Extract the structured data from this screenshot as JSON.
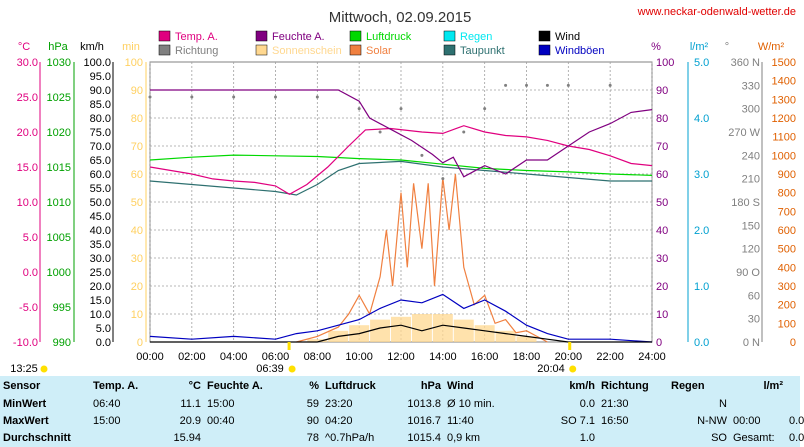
{
  "header": {
    "title": "Mittwoch, 02.09.2015",
    "site": "www.neckar-odenwald-wetter.de"
  },
  "colors": {
    "temp": "#e0007f",
    "humidity": "#800080",
    "pressure": "#00d800",
    "rain": "#00e8f0",
    "wind": "#000000",
    "direction": "#808080",
    "sunshine": "#ffd890",
    "solar": "#f08040",
    "dewpoint": "#2e7070",
    "gust": "#0000c0",
    "grid": "#a0a0a0",
    "temp_axis": "#e0007f",
    "pressure_axis": "#00a000",
    "windaxis": "#000000",
    "min_axis": "#ffd060",
    "pct_axis": "#800080",
    "rain_axis": "#00a0d0",
    "dir_axis": "#808080",
    "solar_axis": "#e06000"
  },
  "legend": [
    {
      "key": "temp",
      "label": "Temp. A."
    },
    {
      "key": "humidity",
      "label": "Feuchte A."
    },
    {
      "key": "pressure",
      "label": "Luftdruck"
    },
    {
      "key": "rain",
      "label": "Regen"
    },
    {
      "key": "wind",
      "label": "Wind"
    },
    {
      "key": "direction",
      "label": "Richtung"
    },
    {
      "key": "sunshine",
      "label": "Sonnenschein"
    },
    {
      "key": "solar",
      "label": "Solar"
    },
    {
      "key": "dewpoint",
      "label": "Taupunkt"
    },
    {
      "key": "gust",
      "label": "Windböen"
    }
  ],
  "sun": {
    "sunrise": "06:39",
    "sunset": "20:04",
    "left_time": "13:25"
  },
  "chart_data": {
    "type": "line",
    "x_range": [
      "00:00",
      "24:00"
    ],
    "x_ticks": [
      "00:00",
      "02:00",
      "04:00",
      "06:00",
      "08:00",
      "10:00",
      "12:00",
      "14:00",
      "16:00",
      "18:00",
      "20:00",
      "22:00",
      "24:00"
    ],
    "axes": {
      "temp": {
        "unit": "°C",
        "ticks": [
          "30.0",
          "25.0",
          "20.0",
          "15.0",
          "10.0",
          "5.0",
          "0.0",
          "-5.0",
          "-10.0"
        ],
        "range": [
          -10,
          30
        ]
      },
      "pressure": {
        "unit": "hPa",
        "ticks": [
          "1030",
          "1025",
          "1020",
          "1015",
          "1010",
          "1005",
          "1000",
          "995",
          "990"
        ],
        "range": [
          990,
          1030
        ]
      },
      "wind": {
        "unit": "km/h",
        "ticks": [
          "100.0",
          "95.0",
          "90.0",
          "85.0",
          "80.0",
          "75.0",
          "70.0",
          "65.0",
          "60.0",
          "55.0",
          "50.0",
          "45.0",
          "40.0",
          "35.0",
          "30.0",
          "25.0",
          "20.0",
          "15.0",
          "10.0",
          "5.0",
          "0.0"
        ],
        "range": [
          0,
          100
        ]
      },
      "minutes": {
        "unit": "min",
        "ticks": [
          "100",
          "90",
          "80",
          "70",
          "60",
          "50",
          "40",
          "30",
          "20",
          "10",
          "0"
        ],
        "range": [
          0,
          100
        ]
      },
      "percent": {
        "unit": "%",
        "ticks": [
          "100",
          "90",
          "80",
          "70",
          "60",
          "50",
          "40",
          "30",
          "20",
          "10",
          "0"
        ],
        "range": [
          0,
          100
        ]
      },
      "rain": {
        "unit": "l/m²",
        "ticks": [
          "5.0",
          "4.0",
          "3.0",
          "2.0",
          "1.0",
          "0.0"
        ],
        "range": [
          0,
          5
        ]
      },
      "direction": {
        "unit": "°",
        "ticks": [
          "360 N",
          "330",
          "300",
          "270 W",
          "240",
          "210",
          "180 S",
          "150",
          "120",
          "90 O",
          "60",
          "30",
          "0 N"
        ],
        "range": [
          0,
          360
        ]
      },
      "solar": {
        "unit": "W/m²",
        "ticks": [
          "1500",
          "1400",
          "1300",
          "1200",
          "1100",
          "1000",
          "900",
          "800",
          "700",
          "600",
          "500",
          "400",
          "300",
          "200",
          "100",
          "0"
        ],
        "range": [
          0,
          1500
        ]
      }
    },
    "series": [
      {
        "key": "temp",
        "name": "Temp. A.",
        "axis": "temp",
        "points": [
          [
            0,
            15.0
          ],
          [
            1,
            14.5
          ],
          [
            2,
            14.0
          ],
          [
            3,
            13.3
          ],
          [
            4,
            13.0
          ],
          [
            5,
            12.8
          ],
          [
            6,
            12.3
          ],
          [
            6.67,
            11.1
          ],
          [
            7.5,
            12.5
          ],
          [
            8.5,
            15.0
          ],
          [
            9.5,
            18.0
          ],
          [
            10.3,
            20.3
          ],
          [
            11.5,
            20.5
          ],
          [
            13,
            20.0
          ],
          [
            14,
            19.8
          ],
          [
            15,
            20.9
          ],
          [
            16,
            20.0
          ],
          [
            17,
            19.5
          ],
          [
            18,
            19.3
          ],
          [
            19,
            18.8
          ],
          [
            20,
            18.0
          ],
          [
            21,
            17.5
          ],
          [
            22,
            16.6
          ],
          [
            23,
            15.5
          ],
          [
            24,
            15.2
          ]
        ]
      },
      {
        "key": "humidity",
        "name": "Feuchte A.",
        "axis": "percent",
        "points": [
          [
            0,
            90
          ],
          [
            2,
            90
          ],
          [
            4,
            90
          ],
          [
            6,
            90
          ],
          [
            8,
            90
          ],
          [
            9,
            90
          ],
          [
            10,
            86
          ],
          [
            10.5,
            80
          ],
          [
            11.5,
            76
          ],
          [
            12.5,
            72
          ],
          [
            13.5,
            67
          ],
          [
            14,
            64
          ],
          [
            14.5,
            66
          ],
          [
            15,
            59
          ],
          [
            15.5,
            61
          ],
          [
            16,
            63
          ],
          [
            17,
            60
          ],
          [
            18,
            65
          ],
          [
            19,
            65
          ],
          [
            20,
            70
          ],
          [
            21,
            75
          ],
          [
            22,
            78
          ],
          [
            23,
            82
          ],
          [
            24,
            83
          ]
        ]
      },
      {
        "key": "pressure",
        "name": "Luftdruck",
        "axis": "pressure",
        "points": [
          [
            0,
            1016.0
          ],
          [
            2,
            1016.4
          ],
          [
            4,
            1016.7
          ],
          [
            6,
            1016.6
          ],
          [
            8,
            1016.5
          ],
          [
            10,
            1016.2
          ],
          [
            12,
            1016.0
          ],
          [
            14,
            1015.4
          ],
          [
            16,
            1014.8
          ],
          [
            18,
            1014.5
          ],
          [
            20,
            1014.3
          ],
          [
            22,
            1014.0
          ],
          [
            24,
            1013.8
          ]
        ]
      },
      {
        "key": "dewpoint",
        "name": "Taupunkt",
        "axis": "temp",
        "points": [
          [
            0,
            13.0
          ],
          [
            2,
            12.5
          ],
          [
            4,
            12.0
          ],
          [
            6,
            11.5
          ],
          [
            7,
            11.0
          ],
          [
            8,
            12.5
          ],
          [
            9,
            14.5
          ],
          [
            10,
            15.5
          ],
          [
            12,
            15.8
          ],
          [
            14,
            15.0
          ],
          [
            16,
            14.5
          ],
          [
            18,
            14.0
          ],
          [
            20,
            13.5
          ],
          [
            22,
            13.0
          ],
          [
            24,
            13.0
          ]
        ]
      },
      {
        "key": "direction",
        "name": "Richtung",
        "axis": "direction",
        "points": [
          [
            0,
            315
          ],
          [
            2,
            315
          ],
          [
            4,
            315
          ],
          [
            6,
            315
          ],
          [
            8,
            315
          ],
          [
            10,
            300
          ],
          [
            11,
            270
          ],
          [
            12,
            300
          ],
          [
            13,
            240
          ],
          [
            14,
            210
          ],
          [
            15,
            270
          ],
          [
            16,
            300
          ],
          [
            17,
            330
          ],
          [
            18,
            330
          ],
          [
            19,
            330
          ],
          [
            20,
            330
          ],
          [
            22,
            330
          ]
        ]
      },
      {
        "key": "solar",
        "name": "Solar",
        "axis": "solar",
        "points": [
          [
            7,
            0
          ],
          [
            8,
            30
          ],
          [
            9,
            80
          ],
          [
            9.5,
            150
          ],
          [
            10,
            250
          ],
          [
            10.5,
            150
          ],
          [
            11,
            350
          ],
          [
            11.3,
            600
          ],
          [
            11.6,
            300
          ],
          [
            12,
            800
          ],
          [
            12.3,
            400
          ],
          [
            12.6,
            850
          ],
          [
            13,
            500
          ],
          [
            13.3,
            850
          ],
          [
            13.6,
            300
          ],
          [
            14,
            880
          ],
          [
            14.3,
            600
          ],
          [
            14.6,
            900
          ],
          [
            15,
            400
          ],
          [
            15.5,
            200
          ],
          [
            16,
            250
          ],
          [
            16.5,
            100
          ],
          [
            17,
            120
          ],
          [
            17.5,
            50
          ],
          [
            18,
            60
          ],
          [
            18.5,
            30
          ],
          [
            19,
            0
          ]
        ]
      },
      {
        "key": "sunshine",
        "name": "Sonnenschein",
        "axis": "minutes",
        "points": [
          [
            8,
            1
          ],
          [
            9,
            4
          ],
          [
            10,
            6
          ],
          [
            11,
            8
          ],
          [
            12,
            9
          ],
          [
            13,
            10
          ],
          [
            14,
            10
          ],
          [
            15,
            8
          ],
          [
            16,
            6
          ],
          [
            17,
            4
          ],
          [
            18,
            2
          ],
          [
            19,
            0
          ]
        ]
      },
      {
        "key": "wind",
        "name": "Wind",
        "axis": "wind",
        "points": [
          [
            0,
            0
          ],
          [
            8,
            0
          ],
          [
            9,
            2
          ],
          [
            10,
            3
          ],
          [
            11,
            5
          ],
          [
            12,
            6
          ],
          [
            13,
            4
          ],
          [
            14,
            6
          ],
          [
            15,
            5
          ],
          [
            16,
            4
          ],
          [
            17,
            3
          ],
          [
            18,
            2
          ],
          [
            19,
            1
          ],
          [
            20,
            0
          ],
          [
            24,
            0
          ]
        ]
      },
      {
        "key": "gust",
        "name": "Windböen",
        "axis": "wind",
        "points": [
          [
            0,
            2
          ],
          [
            2,
            1
          ],
          [
            4,
            2
          ],
          [
            6,
            1
          ],
          [
            7,
            3
          ],
          [
            8,
            4
          ],
          [
            9,
            6
          ],
          [
            10,
            8
          ],
          [
            11,
            12
          ],
          [
            12,
            15
          ],
          [
            13,
            14
          ],
          [
            14,
            17
          ],
          [
            15,
            12
          ],
          [
            16,
            15
          ],
          [
            17,
            11
          ],
          [
            18,
            6
          ],
          [
            19,
            3
          ],
          [
            20,
            1
          ],
          [
            22,
            1
          ],
          [
            24,
            0
          ]
        ]
      }
    ]
  },
  "summary": {
    "headers": {
      "sensor": "Sensor",
      "temp": "Temp. A.",
      "temp_unit": "°C",
      "hum": "Feuchte A.",
      "hum_unit": "%",
      "press": "Luftdruck",
      "press_unit": "hPa",
      "wind": "Wind",
      "wind_unit": "km/h",
      "dir": "Richtung",
      "rain": "Regen",
      "rain_unit": "l/m²"
    },
    "rows": [
      {
        "label": "MinWert",
        "temp_t": "06:40",
        "temp_v": "11.1",
        "hum_t": "15:00",
        "hum_v": "59",
        "press_t": "23:20",
        "press_v": "1013.8",
        "wind_t": "Ø 10 min.",
        "wind_v": "0.0",
        "dir_t": "21:30",
        "dir_v": "N",
        "rain_t": "",
        "rain_v": ""
      },
      {
        "label": "MaxWert",
        "temp_t": "15:00",
        "temp_v": "20.9",
        "hum_t": "00:40",
        "hum_v": "90",
        "press_t": "04:20",
        "press_v": "1016.7",
        "wind_t": "11:40",
        "wind_v": "SO 7.1",
        "dir_t": "16:50",
        "dir_v": "N-NW",
        "rain_t": "00:00",
        "rain_v": "0.0"
      },
      {
        "label": "Durchschnitt",
        "temp_t": "",
        "temp_v": "15.94",
        "hum_t": "",
        "hum_v": "78",
        "press_t": "^0.7hPa/h",
        "press_v": "1015.4",
        "wind_t": "0,9 km",
        "wind_v": "1.0",
        "dir_t": "",
        "dir_v": "SO",
        "rain_t": "Gesamt:",
        "rain_v": "0.0"
      }
    ]
  }
}
